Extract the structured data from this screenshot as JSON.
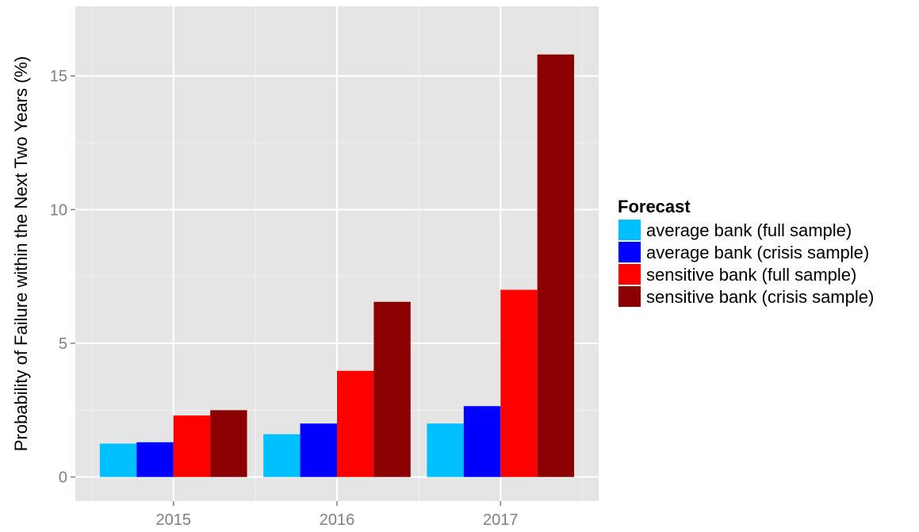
{
  "chart_data": {
    "type": "bar",
    "title": "",
    "xlabel": "",
    "ylabel": "Probability of Failure within the Next Two Years (%)",
    "categories": [
      "2015",
      "2016",
      "2017"
    ],
    "ylim": [
      -0.9,
      17.6
    ],
    "yticks": [
      0,
      5,
      10,
      15
    ],
    "ytick_labels": [
      "0",
      "5",
      "10",
      "15"
    ],
    "grid": true,
    "legend": {
      "title": "Forecast",
      "placement": "right"
    },
    "series": [
      {
        "name": "average bank (full sample)",
        "color": "#00BFFF",
        "values": [
          1.25,
          1.6,
          2.0
        ]
      },
      {
        "name": "average bank (crisis sample)",
        "color": "#0000FF",
        "values": [
          1.3,
          2.0,
          2.65
        ]
      },
      {
        "name": "sensitive bank (full sample)",
        "color": "#FF0000",
        "values": [
          2.3,
          3.97,
          7.0
        ]
      },
      {
        "name": "sensitive bank (crisis sample)",
        "color": "#8B0000",
        "values": [
          2.5,
          6.55,
          15.8
        ]
      }
    ]
  }
}
